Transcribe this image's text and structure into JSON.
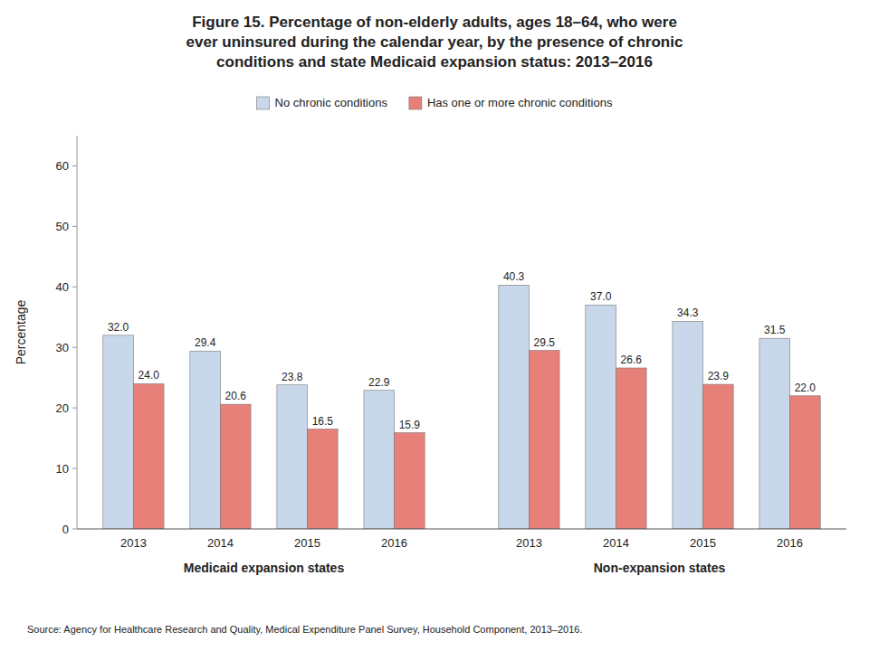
{
  "chart_data": {
    "type": "bar",
    "title": "Figure 15. Percentage of non-elderly adults, ages 18–64, who were\never uninsured during the calendar year, by the presence of chronic\nconditions and state Medicaid expansion status: 2013–2016",
    "categories": [
      "2013",
      "2014",
      "2015",
      "2016",
      "2013",
      "2014",
      "2015",
      "2016"
    ],
    "annotations": [
      "Medicaid expansion states",
      "Non-expansion states"
    ],
    "source": "Source: Agency for Healthcare Research and Quality, Medical Expenditure Panel Survey, Household Component, 2013–2016.",
    "series": [
      {
        "name": "No chronic conditions",
        "color": "#c8d8ea",
        "values": [
          32.0,
          29.4,
          23.8,
          22.9,
          40.3,
          37.0,
          34.3,
          31.5
        ],
        "value_labels": [
          "32.0",
          "29.4",
          "23.8",
          "22.9",
          "40.3",
          "37.0",
          "34.3",
          "31.5"
        ]
      },
      {
        "name": "Has one or more chronic conditions",
        "color": "#e8807a",
        "values": [
          24.0,
          20.6,
          16.5,
          15.9,
          29.5,
          26.6,
          23.9,
          22.0
        ],
        "value_labels": [
          "24.0",
          "20.6",
          "16.5",
          "15.9",
          "29.5",
          "26.6",
          "23.9",
          "22.0"
        ]
      }
    ],
    "y_label": "Percentage",
    "ylim": [
      0,
      65
    ],
    "yticks": [
      0,
      10,
      20,
      30,
      40,
      50,
      60
    ],
    "grid": false,
    "legend": "top",
    "data_labels": true
  }
}
